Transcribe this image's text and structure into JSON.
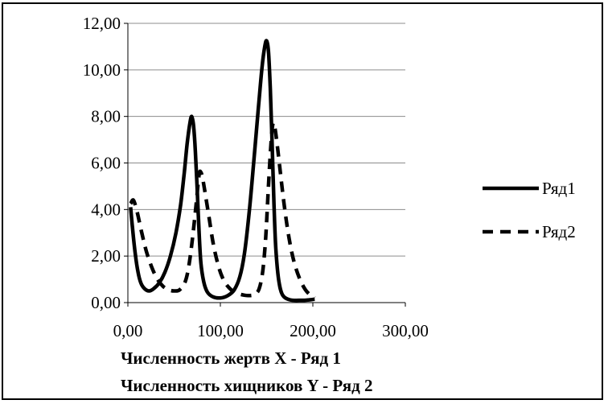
{
  "chart_data": {
    "type": "line",
    "title": "",
    "xlabel_lines": [
      "Численность  жертв X - Ряд 1",
      "Численность  хищников  Y -  Ряд 2"
    ],
    "ylabel": "",
    "xlim": [
      0,
      300
    ],
    "ylim": [
      0,
      12
    ],
    "x_ticks": [
      "0,00",
      "100,00",
      "200,00",
      "300,00"
    ],
    "y_ticks": [
      "0,00",
      "2,00",
      "4,00",
      "6,00",
      "8,00",
      "10,00",
      "12,00"
    ],
    "grid": "horizontal",
    "legend_position": "right",
    "series": [
      {
        "name": "Ряд1",
        "style": "solid",
        "color": "#000000",
        "points": [
          [
            3,
            4.1
          ],
          [
            5,
            3.2
          ],
          [
            8,
            2.1
          ],
          [
            11,
            1.3
          ],
          [
            14,
            0.85
          ],
          [
            18,
            0.6
          ],
          [
            23,
            0.5
          ],
          [
            28,
            0.6
          ],
          [
            34,
            0.85
          ],
          [
            40,
            1.3
          ],
          [
            46,
            2.0
          ],
          [
            52,
            3.0
          ],
          [
            57,
            4.2
          ],
          [
            61,
            5.6
          ],
          [
            64,
            6.8
          ],
          [
            67,
            7.7
          ],
          [
            69,
            8.0
          ],
          [
            71,
            7.6
          ],
          [
            73,
            6.5
          ],
          [
            75,
            4.8
          ],
          [
            77,
            3.0
          ],
          [
            79,
            1.7
          ],
          [
            82,
            0.9
          ],
          [
            86,
            0.45
          ],
          [
            92,
            0.25
          ],
          [
            100,
            0.2
          ],
          [
            108,
            0.3
          ],
          [
            115,
            0.55
          ],
          [
            121,
            1.1
          ],
          [
            126,
            2.1
          ],
          [
            131,
            3.8
          ],
          [
            136,
            6.0
          ],
          [
            141,
            8.3
          ],
          [
            145,
            10.1
          ],
          [
            148,
            11.0
          ],
          [
            150,
            11.25
          ],
          [
            152,
            10.8
          ],
          [
            154,
            9.2
          ],
          [
            156,
            6.8
          ],
          [
            158,
            4.2
          ],
          [
            160,
            2.3
          ],
          [
            163,
            1.0
          ],
          [
            167,
            0.35
          ],
          [
            175,
            0.12
          ],
          [
            188,
            0.1
          ],
          [
            197,
            0.12
          ],
          [
            202,
            0.15
          ]
        ]
      },
      {
        "name": "Ряд2",
        "style": "dashed",
        "color": "#000000",
        "points": [
          [
            3,
            4.25
          ],
          [
            6,
            4.4
          ],
          [
            10,
            3.9
          ],
          [
            15,
            3.0
          ],
          [
            20,
            2.2
          ],
          [
            26,
            1.5
          ],
          [
            32,
            1.0
          ],
          [
            38,
            0.7
          ],
          [
            44,
            0.55
          ],
          [
            50,
            0.5
          ],
          [
            56,
            0.55
          ],
          [
            62,
            0.9
          ],
          [
            66,
            1.6
          ],
          [
            70,
            2.8
          ],
          [
            74,
            4.3
          ],
          [
            77,
            5.5
          ],
          [
            79,
            5.6
          ],
          [
            81,
            5.3
          ],
          [
            84,
            4.6
          ],
          [
            88,
            3.6
          ],
          [
            92,
            2.6
          ],
          [
            97,
            1.7
          ],
          [
            102,
            1.1
          ],
          [
            108,
            0.7
          ],
          [
            115,
            0.45
          ],
          [
            122,
            0.35
          ],
          [
            130,
            0.3
          ],
          [
            137,
            0.35
          ],
          [
            142,
            0.6
          ],
          [
            146,
            1.4
          ],
          [
            149,
            2.8
          ],
          [
            152,
            5.0
          ],
          [
            155,
            7.0
          ],
          [
            157,
            7.7
          ],
          [
            159,
            7.5
          ],
          [
            162,
            6.6
          ],
          [
            166,
            5.2
          ],
          [
            170,
            3.9
          ],
          [
            175,
            2.6
          ],
          [
            180,
            1.7
          ],
          [
            186,
            1.0
          ],
          [
            192,
            0.55
          ],
          [
            198,
            0.3
          ],
          [
            202,
            0.2
          ]
        ]
      }
    ]
  }
}
